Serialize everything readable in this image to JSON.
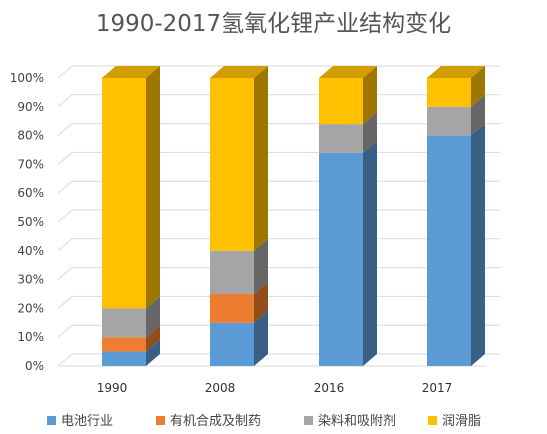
{
  "chart_data": {
    "type": "bar",
    "stacked": true,
    "style": "3d-column",
    "title": "1990-2017氢氧化锂产业结构变化",
    "xlabel": "",
    "ylabel": "",
    "categories": [
      "1990",
      "2008",
      "2016",
      "2017"
    ],
    "ylim": [
      0,
      100
    ],
    "y_ticks": [
      "0%",
      "10%",
      "20%",
      "30%",
      "40%",
      "50%",
      "60%",
      "70%",
      "80%",
      "90%",
      "100%"
    ],
    "grid": true,
    "legend_position": "bottom",
    "series": [
      {
        "name": "电池行业",
        "values": [
          5,
          15,
          74,
          80
        ],
        "color": "#5b9bd5"
      },
      {
        "name": "有机合成及制药",
        "values": [
          5,
          10,
          0,
          0
        ],
        "color": "#ed7d31"
      },
      {
        "name": "染料和吸附剂",
        "values": [
          10,
          15,
          10,
          10
        ],
        "color": "#a5a5a5"
      },
      {
        "name": "润滑脂",
        "values": [
          80,
          60,
          16,
          10
        ],
        "color": "#ffc000"
      }
    ]
  }
}
